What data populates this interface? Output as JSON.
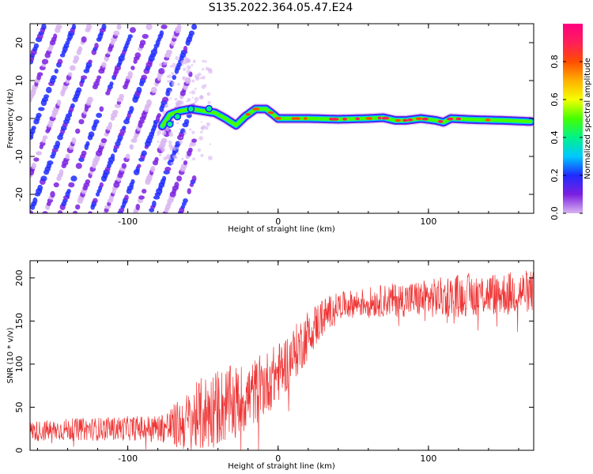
{
  "title": "S135.2022.364.05.47.E24",
  "chart_data": [
    {
      "type": "heatmap",
      "xlabel": "Height of straight line (km)",
      "ylabel": "Frequency (Hz)",
      "xlim": [
        -165,
        170
      ],
      "ylim": [
        -25,
        25
      ],
      "xticks": [
        -100,
        0,
        100
      ],
      "yticks": [
        -20,
        -10,
        0,
        10,
        20
      ],
      "colorbar": {
        "label": "Normalized spectral amplitude",
        "range": [
          0,
          1
        ],
        "ticks": [
          0.0,
          0.2,
          0.4,
          0.6,
          0.8
        ],
        "colormap": [
          "#d8b4f0",
          "#7b1fe0",
          "#1f2bff",
          "#00c8ff",
          "#00f28a",
          "#44ff00",
          "#f4ff00",
          "#ffb000",
          "#ff4d00",
          "#ff1e5a",
          "#ff0080"
        ]
      },
      "features": {
        "diagonal_stripes": {
          "x_range": [
            -165,
            -60
          ],
          "slope_hz_per_km": 1.0,
          "spacing_km": 10
        },
        "central_line": [
          [
            -77,
            -2
          ],
          [
            -72,
            1
          ],
          [
            -65,
            2
          ],
          [
            -58,
            2.5
          ],
          [
            -50,
            2
          ],
          [
            -42,
            1.5
          ],
          [
            -35,
            0
          ],
          [
            -28,
            -1.8
          ],
          [
            -22,
            0.5
          ],
          [
            -15,
            2.5
          ],
          [
            -8,
            2.5
          ],
          [
            -3,
            1
          ],
          [
            0,
            0
          ],
          [
            20,
            0
          ],
          [
            40,
            -0.2
          ],
          [
            60,
            0
          ],
          [
            70,
            0.2
          ],
          [
            78,
            -0.5
          ],
          [
            85,
            -0.5
          ],
          [
            95,
            0
          ],
          [
            105,
            -0.5
          ],
          [
            110,
            -1
          ],
          [
            115,
            0
          ],
          [
            130,
            -0.3
          ],
          [
            150,
            -0.5
          ],
          [
            168,
            -0.8
          ]
        ]
      }
    },
    {
      "type": "line",
      "xlabel": "Height of straight line (km)",
      "ylabel": "SNR (10 * v/v)",
      "xlim": [
        -165,
        170
      ],
      "ylim": [
        0,
        220
      ],
      "xticks": [
        -100,
        0,
        100
      ],
      "yticks": [
        0,
        50,
        100,
        150,
        200
      ],
      "series": [
        {
          "color": "#ee3333",
          "trend": [
            [
              -165,
              22
            ],
            [
              -140,
              24
            ],
            [
              -110,
              25
            ],
            [
              -85,
              26
            ],
            [
              -72,
              27
            ],
            [
              -62,
              32
            ],
            [
              -50,
              42
            ],
            [
              -40,
              50
            ],
            [
              -30,
              55
            ],
            [
              -20,
              62
            ],
            [
              -10,
              75
            ],
            [
              0,
              90
            ],
            [
              10,
              110
            ],
            [
              20,
              135
            ],
            [
              30,
              155
            ],
            [
              40,
              168
            ],
            [
              60,
              172
            ],
            [
              80,
              175
            ],
            [
              100,
              176
            ],
            [
              120,
              180
            ],
            [
              150,
              182
            ],
            [
              170,
              185
            ]
          ],
          "spread": [
            [
              -165,
              12
            ],
            [
              -80,
              15
            ],
            [
              -65,
              30
            ],
            [
              -50,
              45
            ],
            [
              -35,
              45
            ],
            [
              -20,
              40
            ],
            [
              0,
              35
            ],
            [
              20,
              30
            ],
            [
              40,
              15
            ],
            [
              80,
              20
            ],
            [
              120,
              25
            ],
            [
              170,
              25
            ]
          ]
        }
      ]
    }
  ]
}
